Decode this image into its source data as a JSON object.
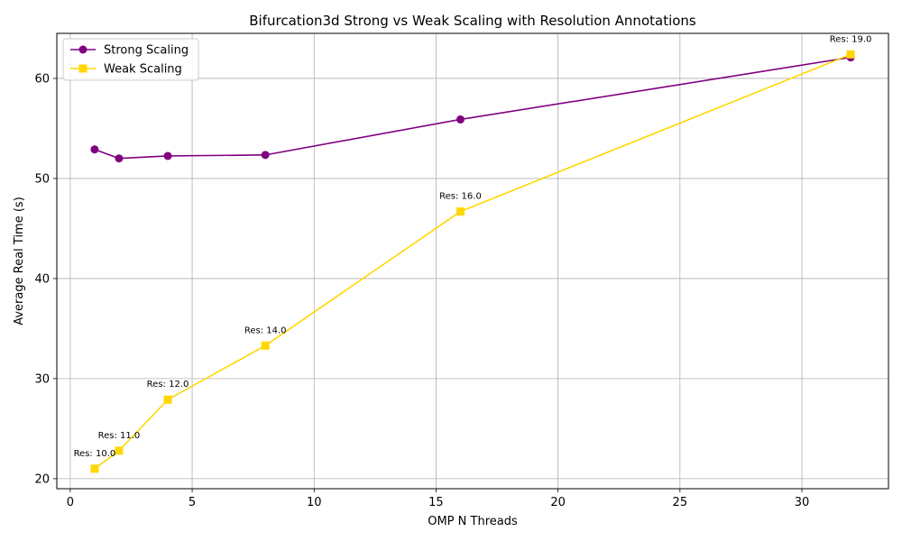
{
  "chart_data": {
    "type": "line",
    "title": "Bifurcation3d Strong vs Weak Scaling with Resolution Annotations",
    "xlabel": "OMP N Threads",
    "ylabel": "Average Real Time (s)",
    "xlim": [
      -0.55,
      33.55
    ],
    "ylim": [
      19.0,
      64.5
    ],
    "xticks": [
      0,
      5,
      10,
      15,
      20,
      25,
      30
    ],
    "yticks": [
      20,
      30,
      40,
      50,
      60
    ],
    "grid": true,
    "legend_position": "top-left",
    "series": [
      {
        "name": "Strong Scaling",
        "color": "#800080",
        "marker": "circle",
        "x": [
          1,
          2,
          4,
          8,
          16,
          32
        ],
        "y": [
          52.9,
          52.0,
          52.25,
          52.35,
          55.9,
          62.1
        ]
      },
      {
        "name": "Weak Scaling",
        "color": "#FFD700",
        "marker": "square",
        "x": [
          1,
          2,
          4,
          8,
          16,
          32
        ],
        "y": [
          21.0,
          22.8,
          27.9,
          33.3,
          46.7,
          62.4
        ]
      }
    ],
    "annotations": [
      {
        "text": "Res: 10.0",
        "x": 1,
        "y": 21.0
      },
      {
        "text": "Res: 11.0",
        "x": 2,
        "y": 22.8
      },
      {
        "text": "Res: 12.0",
        "x": 4,
        "y": 27.9
      },
      {
        "text": "Res: 14.0",
        "x": 8,
        "y": 33.3
      },
      {
        "text": "Res: 16.0",
        "x": 16,
        "y": 46.7
      },
      {
        "text": "Res: 19.0",
        "x": 32,
        "y": 62.4
      }
    ]
  }
}
